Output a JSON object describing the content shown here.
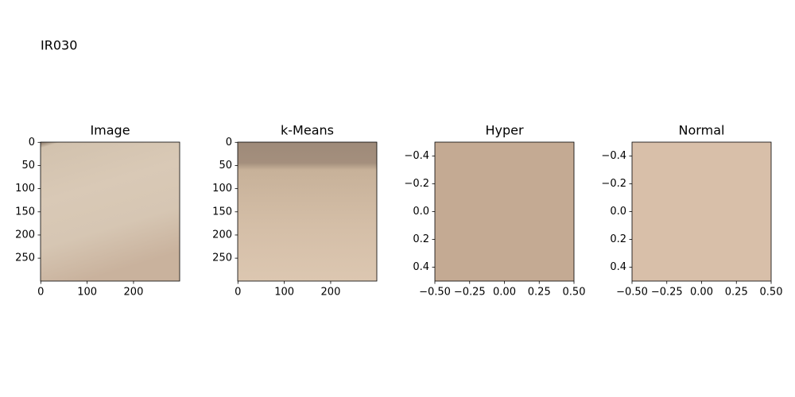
{
  "title": "IR030",
  "chart_data": [
    {
      "type": "image",
      "title": "Image",
      "xlim": [
        -0.5,
        299.5
      ],
      "ylim": [
        299.5,
        -0.5
      ],
      "xticks": [
        0,
        100,
        200
      ],
      "yticks": [
        0,
        50,
        100,
        150,
        200,
        250
      ]
    },
    {
      "type": "image",
      "title": "k-Means",
      "xlim": [
        -0.5,
        299.5
      ],
      "ylim": [
        299.5,
        -0.5
      ],
      "xticks": [
        0,
        100,
        200
      ],
      "yticks": [
        0,
        50,
        100,
        150,
        200,
        250
      ]
    },
    {
      "type": "image",
      "title": "Hyper",
      "color": "#c4aa93",
      "xlim": [
        -0.5,
        0.5
      ],
      "ylim": [
        0.5,
        -0.5
      ],
      "xticks": [
        {
          "value": -0.5,
          "label": "−0.50"
        },
        {
          "value": -0.25,
          "label": "−0.25"
        },
        {
          "value": 0,
          "label": "0.00"
        },
        {
          "value": 0.25,
          "label": "0.25"
        },
        {
          "value": 0.5,
          "label": "0.50"
        }
      ],
      "yticks": [
        {
          "value": -0.4,
          "label": "−0.4"
        },
        {
          "value": -0.2,
          "label": "−0.2"
        },
        {
          "value": 0,
          "label": "0.0"
        },
        0.2,
        0.4
      ]
    },
    {
      "type": "image",
      "title": "Normal",
      "color": "#d8bfa9",
      "xlim": [
        -0.5,
        0.5
      ],
      "ylim": [
        0.5,
        -0.5
      ],
      "xticks": [
        {
          "value": -0.5,
          "label": "−0.50"
        },
        {
          "value": -0.25,
          "label": "−0.25"
        },
        {
          "value": 0,
          "label": "0.00"
        },
        {
          "value": 0.25,
          "label": "0.25"
        },
        {
          "value": 0.5,
          "label": "0.50"
        }
      ],
      "yticks": [
        {
          "value": -0.4,
          "label": "−0.4"
        },
        {
          "value": -0.2,
          "label": "−0.2"
        },
        {
          "value": 0,
          "label": "0.0"
        },
        0.2,
        0.4
      ]
    }
  ]
}
